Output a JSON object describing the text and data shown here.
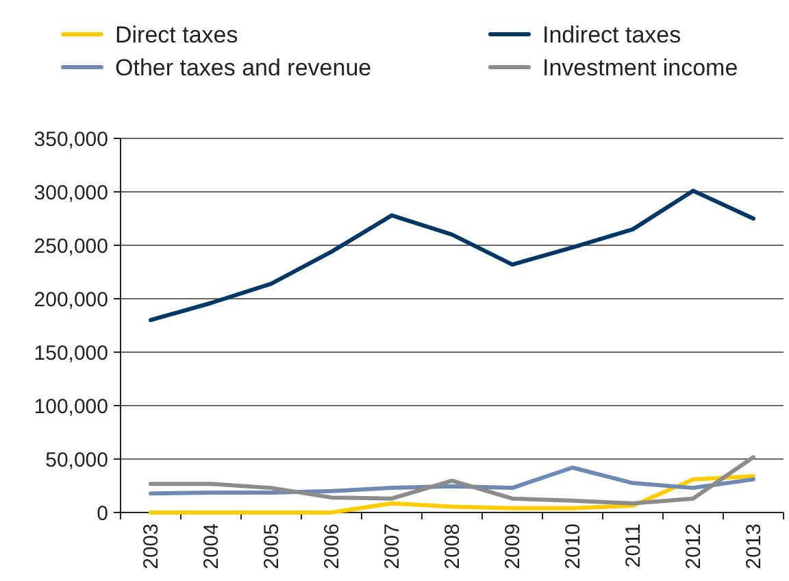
{
  "chart_data": {
    "type": "line",
    "categories": [
      "2003",
      "2004",
      "2005",
      "2006",
      "2007",
      "2008",
      "2009",
      "2010",
      "2011",
      "2012",
      "2013"
    ],
    "series": [
      {
        "name": "Direct taxes",
        "color": "#ffcc00",
        "values": [
          0,
          0,
          0,
          0,
          8500,
          5500,
          4000,
          4000,
          6400,
          31000,
          34000
        ]
      },
      {
        "name": "Indirect taxes",
        "color": "#003865",
        "values": [
          180000,
          196000,
          214000,
          244000,
          278000,
          260000,
          232000,
          248000,
          265000,
          301000,
          275000
        ]
      },
      {
        "name": "Other taxes and revenue",
        "color": "#6f89b5",
        "values": [
          17800,
          18600,
          18600,
          20000,
          23000,
          24500,
          23000,
          42000,
          27500,
          23000,
          31000
        ]
      },
      {
        "name": "Investment income",
        "color": "#8c8c8c",
        "values": [
          26700,
          26700,
          23000,
          14000,
          13000,
          29700,
          13000,
          11000,
          8500,
          13000,
          51700
        ]
      }
    ],
    "ylim": [
      0,
      350000
    ],
    "yticks": [
      {
        "value": 0,
        "label": "0"
      },
      {
        "value": 50000,
        "label": "50,000"
      },
      {
        "value": 100000,
        "label": "100,000"
      },
      {
        "value": 150000,
        "label": "150,000"
      },
      {
        "value": 200000,
        "label": "200,000"
      },
      {
        "value": 250000,
        "label": "250,000"
      },
      {
        "value": 300000,
        "label": "300,000"
      },
      {
        "value": 350000,
        "label": "350,000"
      }
    ],
    "grid": "y",
    "legend": "top",
    "marker": "none",
    "line_style": "solid"
  }
}
